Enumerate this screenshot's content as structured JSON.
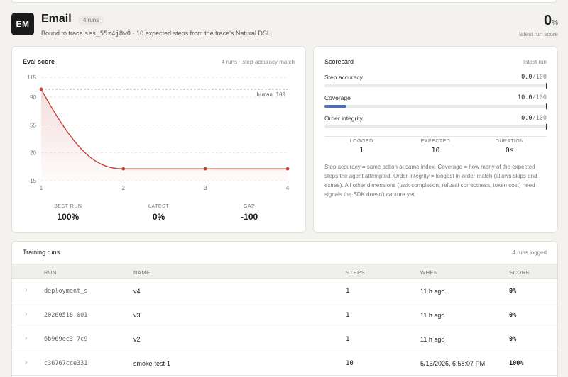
{
  "header": {
    "avatar": "EM",
    "title": "Email",
    "runs_badge": "4 runs",
    "subtitle_prefix": "Bound to trace ",
    "trace_id": "ses_55z4j8w0",
    "subtitle_suffix": " · 10 expected steps from the trace's Natural DSL.",
    "score": "0",
    "score_unit": "%",
    "score_caption": "latest run score"
  },
  "eval": {
    "title": "Eval score",
    "meta": "4 runs · step-accuracy match",
    "reference_label": "human 100",
    "stats": [
      {
        "label": "BEST RUN",
        "value": "100%"
      },
      {
        "label": "LATEST",
        "value": "0%"
      },
      {
        "label": "GAP",
        "value": "-100"
      }
    ]
  },
  "chart_data": {
    "type": "line",
    "x": [
      1,
      2,
      3,
      4
    ],
    "series": [
      {
        "values": [
          100,
          0,
          0,
          0
        ]
      }
    ],
    "reference_line": 100,
    "ylim": [
      -15,
      115
    ],
    "yticks": [
      115,
      90,
      55,
      20,
      -15
    ],
    "xticks": [
      1,
      2,
      3,
      4
    ],
    "color": "#c0453b",
    "grid": true
  },
  "scorecard": {
    "title": "Scorecard",
    "meta": "latest run",
    "metrics": [
      {
        "label": "Step accuracy",
        "value": "0.0",
        "max": "/100",
        "fill": 0.0
      },
      {
        "label": "Coverage",
        "value": "10.0",
        "max": "/100",
        "fill": 0.1
      },
      {
        "label": "Order integrity",
        "value": "0.0",
        "max": "/100",
        "fill": 0.0
      }
    ],
    "counts": [
      {
        "label": "LOGGED",
        "value": "1"
      },
      {
        "label": "EXPECTED",
        "value": "10"
      },
      {
        "label": "DURATION",
        "value": "0s"
      }
    ],
    "note": "Step accuracy = same action at same index. Coverage = how many of the expected steps the agent attempted. Order integrity = longest in-order match (allows skips and extras). All other dimensions (task completion, refusal correctness, token cost) need signals the SDK doesn't capture yet."
  },
  "runs": {
    "title": "Training runs",
    "meta": "4 runs logged",
    "columns": [
      "RUN",
      "NAME",
      "STEPS",
      "WHEN",
      "SCORE"
    ],
    "rows": [
      {
        "run": "deployment_s",
        "name": "v4",
        "steps": "1",
        "when": "11 h ago",
        "score": "0%"
      },
      {
        "run": "20260518-001",
        "name": "v3",
        "steps": "1",
        "when": "11 h ago",
        "score": "0%"
      },
      {
        "run": "6b969ec3-7c9",
        "name": "v2",
        "steps": "1",
        "when": "11 h ago",
        "score": "0%"
      },
      {
        "run": "c36767cce331",
        "name": "smoke-test-1",
        "steps": "10",
        "when": "5/15/2026, 6:58:07 PM",
        "score": "100%"
      }
    ]
  }
}
